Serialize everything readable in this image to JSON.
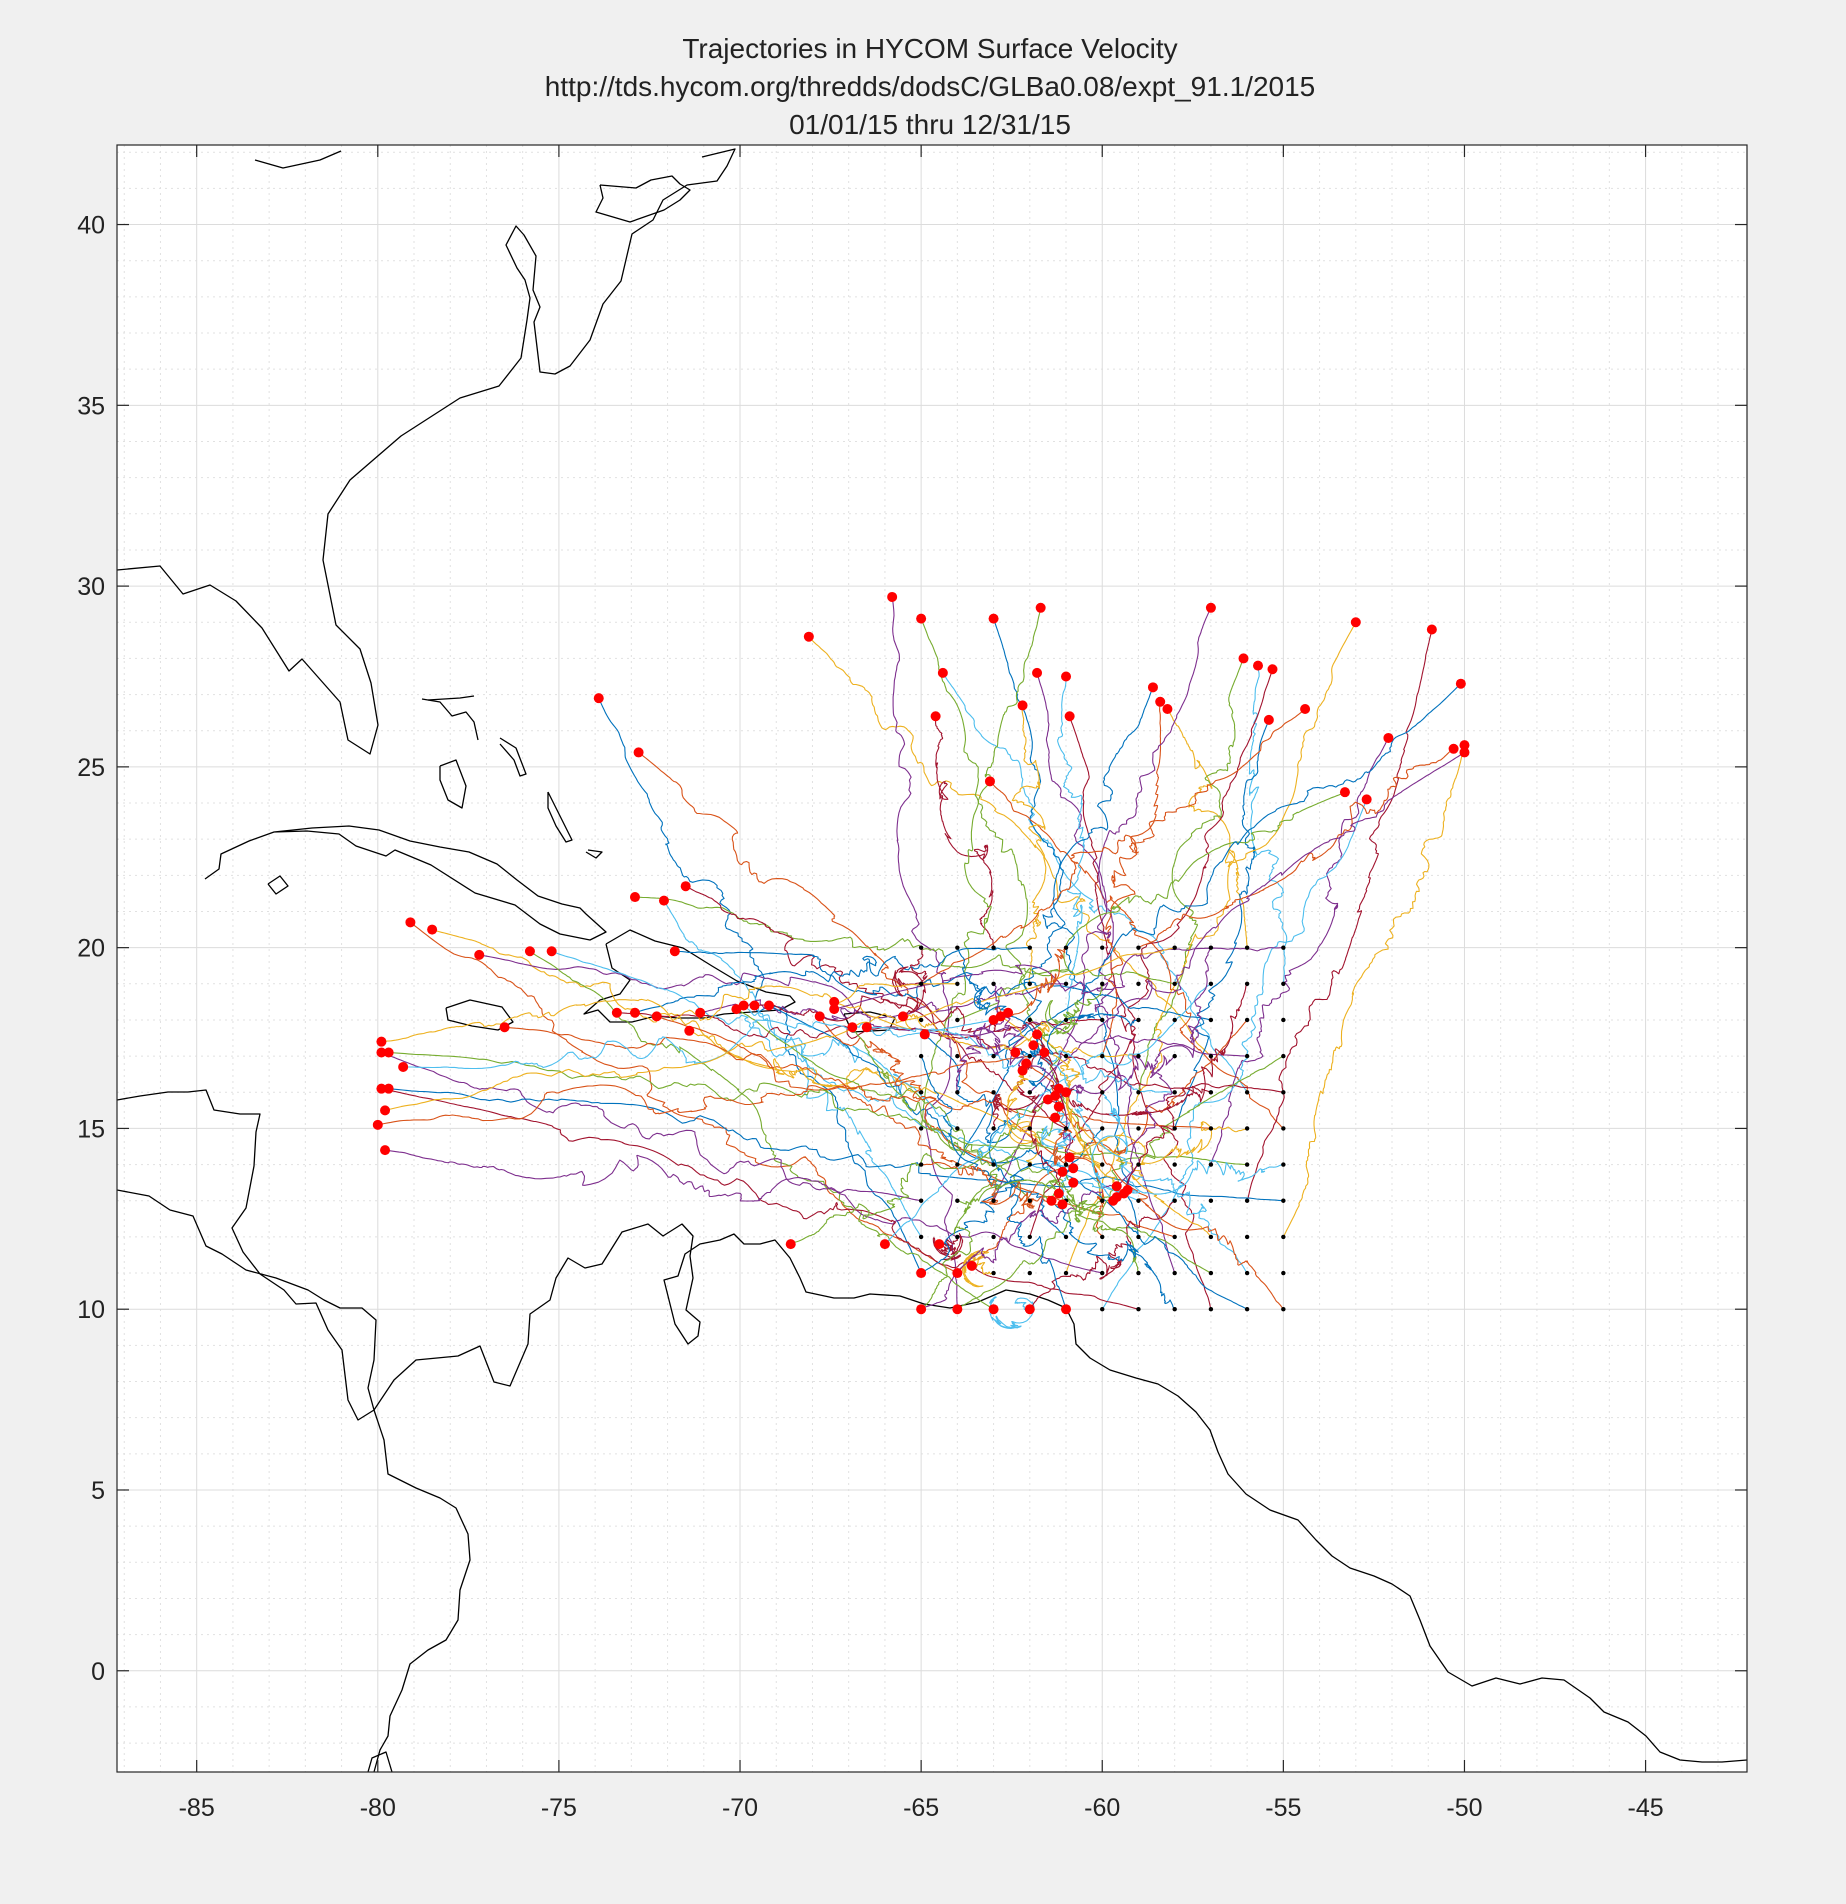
{
  "chart_data": {
    "type": "line",
    "title": [
      "Trajectories    in    HYCOM    Surface    Velocity",
      "http://tds.hycom.org/thredds/dodsC/GLBa0.08/expt_91.1/2015",
      "01/01/15    thru    12/31/15"
    ],
    "xlabel": "",
    "ylabel": "",
    "xlim": [
      -87.2,
      -42.2
    ],
    "ylim": [
      -2.8,
      42.2
    ],
    "x_ticks": [
      -85,
      -80,
      -75,
      -70,
      -65,
      -60,
      -55,
      -50,
      -45
    ],
    "y_ticks": [
      0,
      5,
      10,
      15,
      20,
      25,
      30,
      35,
      40
    ],
    "x_tick_labels": [
      "-85",
      "-80",
      "-75",
      "-70",
      "-65",
      "-60",
      "-55",
      "-50",
      "-45"
    ],
    "y_tick_labels": [
      "0",
      "5",
      "10",
      "15",
      "20",
      "25",
      "30",
      "35",
      "40"
    ],
    "grid": true,
    "minor_grid": true,
    "colors": {
      "background": "#f0f0f0",
      "axes": "#ffffff",
      "coastline": "#000000",
      "start_points": "#000000",
      "end_points": "#ff0000",
      "trajectories": [
        "#0072bd",
        "#d95319",
        "#edb120",
        "#7e2f8e",
        "#77ac30",
        "#4dbeee",
        "#a2142f"
      ]
    },
    "release_grid": {
      "lon": [
        -65,
        -64,
        -63,
        -62,
        -61,
        -60,
        -59,
        -58,
        -57,
        -56,
        -55
      ],
      "lat": [
        10,
        11,
        12,
        13,
        14,
        15,
        16,
        17,
        18,
        19,
        20
      ]
    },
    "end_points": [
      [
        -73.9,
        26.9
      ],
      [
        -72.8,
        25.4
      ],
      [
        -68.1,
        28.6
      ],
      [
        -65.8,
        29.7
      ],
      [
        -65.0,
        29.1
      ],
      [
        -64.4,
        27.6
      ],
      [
        -64.6,
        26.4
      ],
      [
        -63.0,
        29.1
      ],
      [
        -63.1,
        24.6
      ],
      [
        -62.2,
        26.7
      ],
      [
        -61.8,
        27.6
      ],
      [
        -61.7,
        29.4
      ],
      [
        -61.0,
        27.5
      ],
      [
        -60.9,
        26.4
      ],
      [
        -58.6,
        27.2
      ],
      [
        -58.4,
        26.8
      ],
      [
        -58.2,
        26.6
      ],
      [
        -57.0,
        29.4
      ],
      [
        -56.1,
        28.0
      ],
      [
        -55.7,
        27.8
      ],
      [
        -55.3,
        27.7
      ],
      [
        -55.4,
        26.3
      ],
      [
        -54.4,
        26.6
      ],
      [
        -53.0,
        29.0
      ],
      [
        -52.1,
        25.8
      ],
      [
        -53.3,
        24.3
      ],
      [
        -52.7,
        24.1
      ],
      [
        -50.9,
        28.8
      ],
      [
        -50.1,
        27.3
      ],
      [
        -50.3,
        25.5
      ],
      [
        -50.0,
        25.6
      ],
      [
        -50.0,
        25.4
      ],
      [
        -72.9,
        21.4
      ],
      [
        -72.1,
        21.3
      ],
      [
        -71.5,
        21.7
      ],
      [
        -71.8,
        19.9
      ],
      [
        -79.1,
        20.7
      ],
      [
        -78.5,
        20.5
      ],
      [
        -77.2,
        19.8
      ],
      [
        -75.8,
        19.9
      ],
      [
        -75.2,
        19.9
      ],
      [
        -73.4,
        18.2
      ],
      [
        -72.9,
        18.2
      ],
      [
        -72.3,
        18.1
      ],
      [
        -71.4,
        17.7
      ],
      [
        -71.1,
        18.2
      ],
      [
        -70.1,
        18.3
      ],
      [
        -69.9,
        18.4
      ],
      [
        -69.6,
        18.4
      ],
      [
        -69.2,
        18.4
      ],
      [
        -67.8,
        18.1
      ],
      [
        -67.4,
        18.5
      ],
      [
        -67.4,
        18.3
      ],
      [
        -66.9,
        17.8
      ],
      [
        -66.5,
        17.8
      ],
      [
        -65.5,
        18.1
      ],
      [
        -64.9,
        17.6
      ],
      [
        -76.5,
        17.8
      ],
      [
        -79.9,
        17.4
      ],
      [
        -79.9,
        17.1
      ],
      [
        -79.7,
        17.1
      ],
      [
        -79.3,
        16.7
      ],
      [
        -79.9,
        16.1
      ],
      [
        -79.7,
        16.1
      ],
      [
        -80.0,
        15.1
      ],
      [
        -79.8,
        15.5
      ],
      [
        -79.8,
        14.4
      ],
      [
        -68.6,
        11.8
      ],
      [
        -66.0,
        11.8
      ],
      [
        -64.5,
        11.8
      ],
      [
        -65.0,
        11.0
      ],
      [
        -64.0,
        11.0
      ],
      [
        -63.6,
        11.2
      ],
      [
        -65.0,
        10.0
      ],
      [
        -64.0,
        10.0
      ],
      [
        -63.0,
        10.0
      ],
      [
        -62.0,
        10.0
      ],
      [
        -61.0,
        10.0
      ],
      [
        -63.0,
        18.0
      ],
      [
        -62.8,
        18.1
      ],
      [
        -62.6,
        18.2
      ],
      [
        -61.8,
        17.6
      ],
      [
        -61.9,
        17.3
      ],
      [
        -61.6,
        17.1
      ],
      [
        -62.4,
        17.1
      ],
      [
        -62.1,
        16.8
      ],
      [
        -62.2,
        16.6
      ],
      [
        -61.2,
        16.1
      ],
      [
        -61.0,
        16.0
      ],
      [
        -61.3,
        15.9
      ],
      [
        -61.5,
        15.8
      ],
      [
        -61.2,
        15.6
      ],
      [
        -61.3,
        15.3
      ],
      [
        -60.9,
        14.2
      ],
      [
        -60.8,
        13.9
      ],
      [
        -61.1,
        13.8
      ],
      [
        -60.8,
        13.5
      ],
      [
        -61.2,
        13.2
      ],
      [
        -61.4,
        13.0
      ],
      [
        -61.1,
        12.9
      ],
      [
        -59.6,
        13.4
      ],
      [
        -59.3,
        13.3
      ],
      [
        -59.6,
        13.1
      ],
      [
        -59.7,
        13.0
      ],
      [
        -59.4,
        13.2
      ]
    ]
  }
}
